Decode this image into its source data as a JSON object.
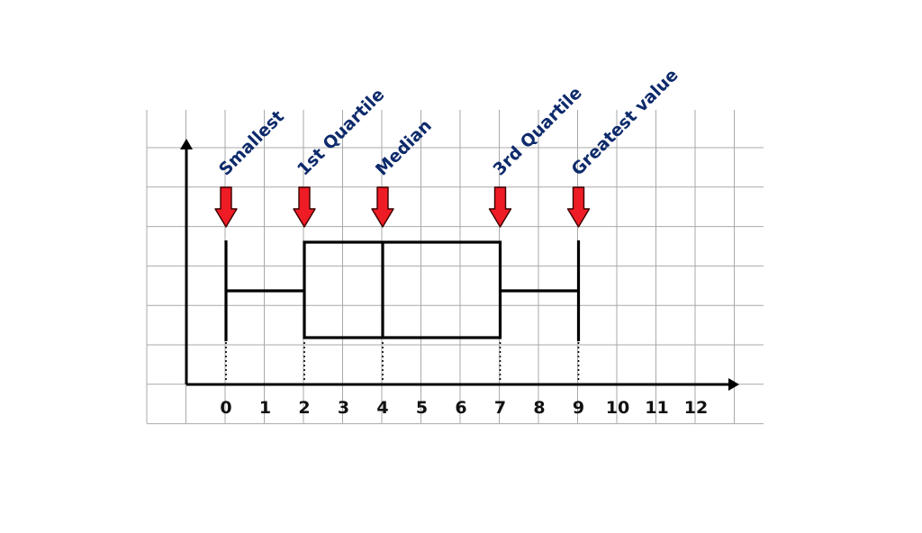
{
  "chart_data": {
    "type": "box",
    "title": "",
    "xlabel": "",
    "ylabel": "",
    "x_ticks": [
      0,
      1,
      2,
      3,
      4,
      5,
      6,
      7,
      8,
      9,
      10,
      11,
      12
    ],
    "xlim": [
      -1,
      13.5
    ],
    "grid": true,
    "box": {
      "min": 0,
      "q1": 2,
      "median": 4,
      "q3": 7,
      "max": 9
    },
    "annotations": [
      {
        "label": "Smallest",
        "value": 0
      },
      {
        "label": "1st Quartile",
        "value": 2
      },
      {
        "label": "Median",
        "value": 4
      },
      {
        "label": "3rd Quartile",
        "value": 7
      },
      {
        "label": "Greatest value",
        "value": 9
      }
    ]
  },
  "colors": {
    "annotation_text": "#0d2a6b",
    "arrow_fill": "#ee1c25",
    "grid": "#a9a9a9",
    "axis": "#000000"
  }
}
